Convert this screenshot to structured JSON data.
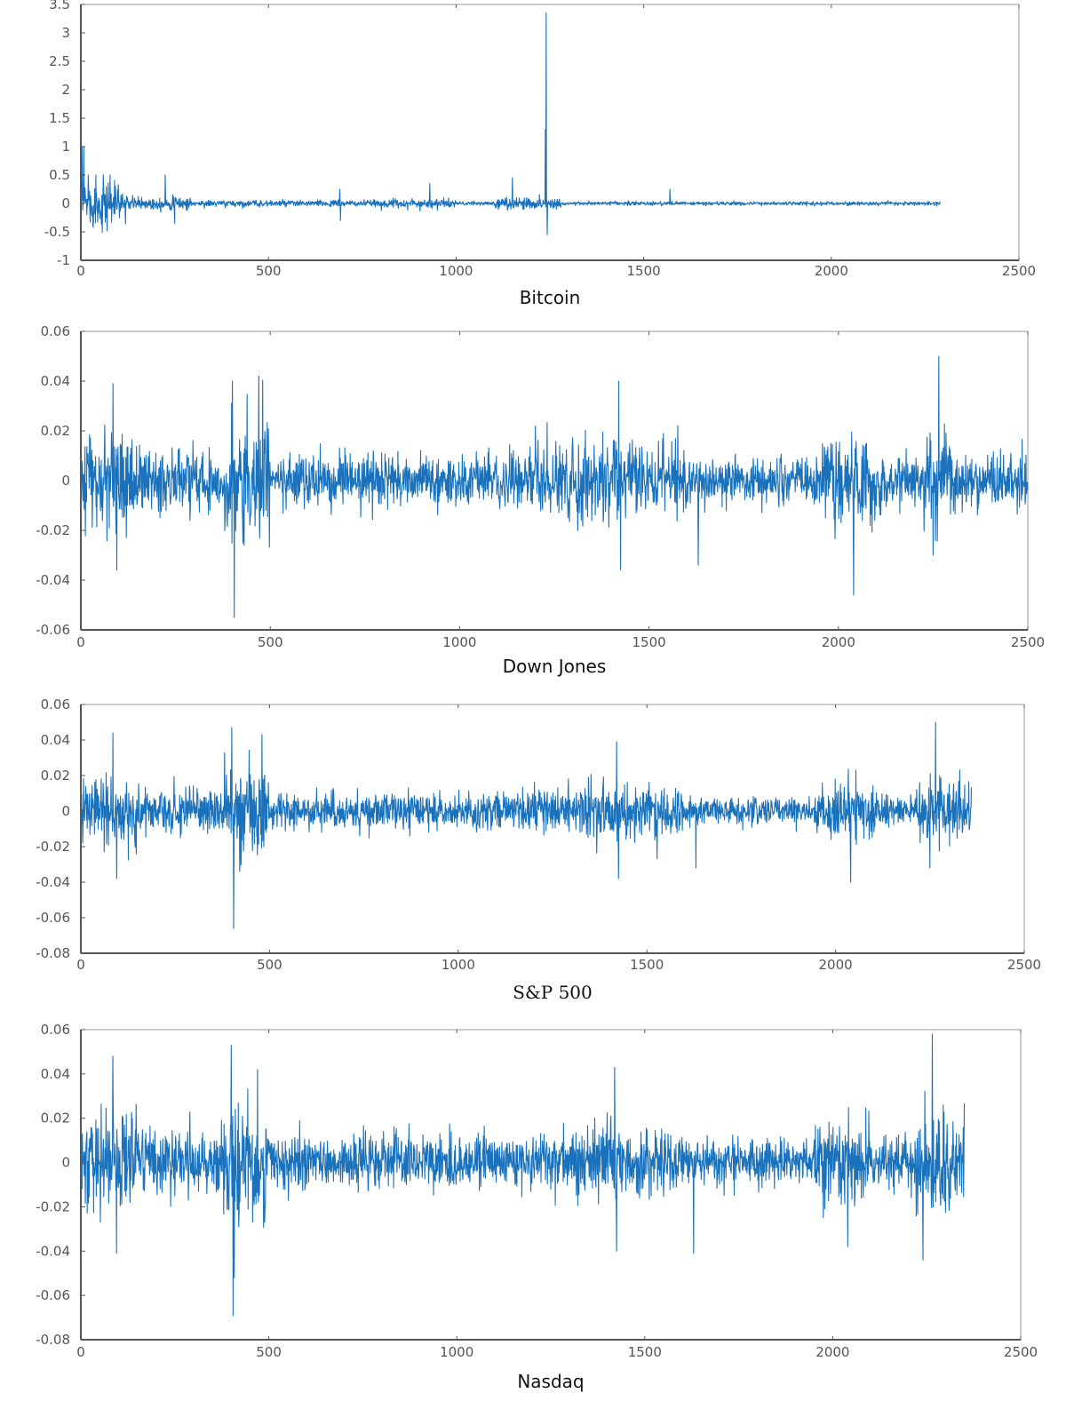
{
  "colors": {
    "line": "#1a72bd",
    "axis": "#555555"
  },
  "chart_data": [
    {
      "type": "line",
      "title": "Bitcoin",
      "length": 2290,
      "xlim": [
        0,
        2500
      ],
      "ylim": [
        -1,
        3.5
      ],
      "xticks": [
        0,
        500,
        1000,
        1500,
        2000,
        2500
      ],
      "yticks": [
        -1,
        -0.5,
        0,
        0.5,
        1,
        1.5,
        2,
        2.5,
        3,
        3.5
      ],
      "ytick_labels": [
        "-1",
        "-0.5",
        "0",
        "0.5",
        "1",
        "1.5",
        "2",
        "2.5",
        "3",
        "3.5"
      ],
      "volatility": [
        [
          0,
          120,
          0.35
        ],
        [
          120,
          300,
          0.1
        ],
        [
          300,
          800,
          0.05
        ],
        [
          800,
          1000,
          0.07
        ],
        [
          1000,
          1100,
          0.03
        ],
        [
          1100,
          1280,
          0.09
        ],
        [
          1280,
          2290,
          0.03
        ]
      ],
      "spikes": [
        [
          3,
          1.0
        ],
        [
          8,
          1.0
        ],
        [
          20,
          0.5
        ],
        [
          25,
          -0.33
        ],
        [
          40,
          0.5
        ],
        [
          45,
          -0.33
        ],
        [
          60,
          0.5
        ],
        [
          65,
          -0.33
        ],
        [
          78,
          0.5
        ],
        [
          82,
          -0.33
        ],
        [
          100,
          0.33
        ],
        [
          225,
          0.5
        ],
        [
          250,
          -0.35
        ],
        [
          690,
          0.25
        ],
        [
          692,
          -0.3
        ],
        [
          930,
          0.35
        ],
        [
          1150,
          0.45
        ],
        [
          1238,
          1.3
        ],
        [
          1240,
          3.35
        ],
        [
          1243,
          -0.55
        ],
        [
          1570,
          0.25
        ]
      ]
    },
    {
      "type": "line",
      "title": "Down Jones",
      "length": 2500,
      "xlim": [
        0,
        2500
      ],
      "ylim": [
        -0.06,
        0.06
      ],
      "xticks": [
        0,
        500,
        1000,
        1500,
        2000,
        2500
      ],
      "yticks": [
        -0.06,
        -0.04,
        -0.02,
        0,
        0.02,
        0.04,
        0.06
      ],
      "ytick_labels": [
        "-0.06",
        "-0.04",
        "-0.02",
        "0",
        "0.02",
        "0.04",
        "0.06"
      ],
      "volatility": [
        [
          0,
          150,
          0.018
        ],
        [
          150,
          380,
          0.011
        ],
        [
          380,
          500,
          0.022
        ],
        [
          500,
          1200,
          0.009
        ],
        [
          1200,
          1280,
          0.012
        ],
        [
          1280,
          1600,
          0.014
        ],
        [
          1600,
          1950,
          0.008
        ],
        [
          1950,
          2100,
          0.016
        ],
        [
          2100,
          2220,
          0.01
        ],
        [
          2220,
          2300,
          0.018
        ],
        [
          2300,
          2500,
          0.01
        ]
      ],
      "spikes": [
        [
          85,
          0.039
        ],
        [
          95,
          -0.036
        ],
        [
          400,
          0.04
        ],
        [
          405,
          -0.055
        ],
        [
          470,
          0.042
        ],
        [
          1420,
          0.04
        ],
        [
          1425,
          -0.036
        ],
        [
          1630,
          -0.034
        ],
        [
          2040,
          -0.046
        ],
        [
          2265,
          0.05
        ],
        [
          2250,
          -0.03
        ]
      ]
    },
    {
      "type": "line",
      "title": "S&P 500",
      "length": 2360,
      "xlim": [
        0,
        2500
      ],
      "ylim": [
        -0.08,
        0.06
      ],
      "xticks": [
        0,
        500,
        1000,
        1500,
        2000,
        2500
      ],
      "yticks": [
        -0.08,
        -0.06,
        -0.04,
        -0.02,
        0,
        0.02,
        0.04,
        0.06
      ],
      "ytick_labels": [
        "-0.08",
        "-0.06",
        "-0.04",
        "-0.02",
        "0",
        "0.02",
        "0.04",
        "0.06"
      ],
      "volatility": [
        [
          0,
          150,
          0.018
        ],
        [
          150,
          380,
          0.011
        ],
        [
          380,
          500,
          0.022
        ],
        [
          500,
          1200,
          0.009
        ],
        [
          1200,
          1280,
          0.011
        ],
        [
          1280,
          1600,
          0.013
        ],
        [
          1600,
          1950,
          0.007
        ],
        [
          1950,
          2100,
          0.014
        ],
        [
          2100,
          2220,
          0.008
        ],
        [
          2220,
          2360,
          0.016
        ]
      ],
      "spikes": [
        [
          85,
          0.044
        ],
        [
          95,
          -0.038
        ],
        [
          400,
          0.047
        ],
        [
          405,
          -0.066
        ],
        [
          480,
          0.043
        ],
        [
          1420,
          0.039
        ],
        [
          1425,
          -0.038
        ],
        [
          1630,
          -0.032
        ],
        [
          2040,
          -0.04
        ],
        [
          2265,
          0.05
        ],
        [
          2250,
          -0.032
        ]
      ]
    },
    {
      "type": "line",
      "title": "Nasdaq",
      "length": 2350,
      "xlim": [
        0,
        2500
      ],
      "ylim": [
        -0.08,
        0.06
      ],
      "xticks": [
        0,
        500,
        1000,
        1500,
        2000,
        2500
      ],
      "yticks": [
        -0.08,
        -0.06,
        -0.04,
        -0.02,
        0,
        0.02,
        0.04,
        0.06
      ],
      "ytick_labels": [
        "-0.08",
        "-0.06",
        "-0.04",
        "-0.02",
        "0",
        "0.02",
        "0.04",
        "0.06"
      ],
      "volatility": [
        [
          0,
          150,
          0.02
        ],
        [
          150,
          380,
          0.013
        ],
        [
          380,
          500,
          0.024
        ],
        [
          500,
          1200,
          0.011
        ],
        [
          1200,
          1280,
          0.013
        ],
        [
          1280,
          1600,
          0.015
        ],
        [
          1600,
          1950,
          0.009
        ],
        [
          1950,
          2100,
          0.016
        ],
        [
          2100,
          2220,
          0.01
        ],
        [
          2220,
          2350,
          0.02
        ]
      ],
      "spikes": [
        [
          85,
          0.048
        ],
        [
          95,
          -0.041
        ],
        [
          400,
          0.053
        ],
        [
          405,
          -0.069
        ],
        [
          408,
          -0.052
        ],
        [
          470,
          0.042
        ],
        [
          1420,
          0.043
        ],
        [
          1425,
          -0.04
        ],
        [
          1630,
          -0.041
        ],
        [
          2040,
          -0.038
        ],
        [
          2265,
          0.058
        ],
        [
          2240,
          -0.044
        ]
      ]
    }
  ]
}
